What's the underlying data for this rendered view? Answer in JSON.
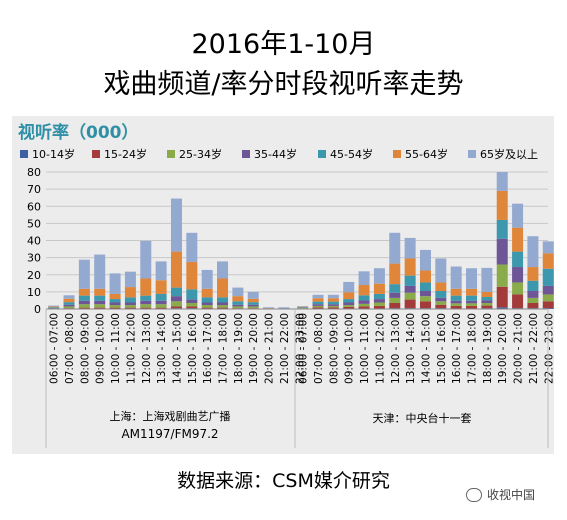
{
  "header": {
    "title_line1": "2016年1-10月",
    "title_line2": "戏曲频道/率分时段视听率走势"
  },
  "footer": {
    "source": "数据来源：CSM媒介研究",
    "watermark": "收视中国",
    "watermark_icon": "wechat-icon"
  },
  "chart_data": {
    "type": "bar",
    "stacked": true,
    "title": "视听率（000）",
    "ylim": [
      0,
      80
    ],
    "yticks": [
      0,
      10,
      20,
      30,
      40,
      50,
      60,
      70,
      80
    ],
    "grid": true,
    "legend_position": "top",
    "categories": [
      "06:00 - 07:00",
      "07:00 - 08:00",
      "08:00 - 09:00",
      "09:00 - 10:00",
      "10:00 - 11:00",
      "11:00 - 12:00",
      "12:00 - 13:00",
      "13:00 - 14:00",
      "14:00 - 15:00",
      "15:00 - 16:00",
      "16:00 - 17:00",
      "17:00 - 18:00",
      "18:00 - 19:00",
      "19:00 - 20:00",
      "20:00 - 21:00",
      "21:00 - 22:00",
      "22:00 - 23:00"
    ],
    "groups": [
      {
        "label_line1": "上海：上海戏剧曲艺广播",
        "label_line2": "AM1197/FM97.2",
        "series": [
          {
            "name": "10-14岁",
            "color": "#3b5fa0",
            "values": [
              0,
              0.2,
              0.3,
              0.3,
              0.3,
              0.3,
              0.3,
              0.3,
              0.5,
              0.5,
              0.3,
              0.3,
              0.2,
              0.2,
              0,
              0,
              0
            ]
          },
          {
            "name": "15-24岁",
            "color": "#a33b3b",
            "values": [
              0,
              0.3,
              0.5,
              0.5,
              0.5,
              0.5,
              0.5,
              0.5,
              1,
              1,
              0.5,
              0.5,
              0.3,
              0.3,
              0,
              0,
              0
            ]
          },
          {
            "name": "25-34岁",
            "color": "#8aab4a",
            "values": [
              0.2,
              1,
              2,
              2,
              1.5,
              1.5,
              2,
              2,
              3,
              2,
              1.5,
              1.5,
              1,
              1,
              0,
              0,
              0
            ]
          },
          {
            "name": "35-44岁",
            "color": "#6e5596",
            "values": [
              0.3,
              1,
              2,
              2,
              1.5,
              1.5,
              2,
              2,
              3,
              2,
              1.5,
              1.5,
              1,
              1,
              0,
              0,
              0
            ]
          },
          {
            "name": "45-54岁",
            "color": "#3d97ad",
            "values": [
              0.5,
              1.5,
              3,
              3,
              2,
              3,
              3,
              4,
              5,
              6,
              3,
              3,
              2,
              1.5,
              0.2,
              0,
              0
            ]
          },
          {
            "name": "55-64岁",
            "color": "#e0863a",
            "values": [
              0.5,
              2,
              4,
              4,
              3,
              6,
              10,
              8,
              21,
              16,
              5,
              11,
              3,
              2,
              0.3,
              0,
              0
            ]
          },
          {
            "name": "65岁及以上",
            "color": "#93a9d0",
            "values": [
              0.5,
              2,
              17,
              20,
              12,
              9,
              22,
              11,
              31,
              17,
              11,
              10,
              5,
              4,
              0.5,
              1,
              0
            ]
          }
        ]
      },
      {
        "label_line1": "天津：中央台十一套",
        "label_line2": "",
        "series": [
          {
            "name": "10-14岁",
            "color": "#3b5fa0",
            "values": [
              0.1,
              0.2,
              0.2,
              0.3,
              0.3,
              0.3,
              0.5,
              0.5,
              0.5,
              0.5,
              0.3,
              0.3,
              0.5,
              1,
              0.5,
              0.5,
              0.5
            ]
          },
          {
            "name": "15-24岁",
            "color": "#a33b3b",
            "values": [
              0.3,
              0.8,
              0.8,
              1,
              1.2,
              1.5,
              3,
              5,
              4,
              2,
              1.5,
              1.5,
              1.5,
              12,
              8,
              3,
              4
            ]
          },
          {
            "name": "25-34岁",
            "color": "#8aab4a",
            "values": [
              0.3,
              0.8,
              0.8,
              1,
              1.5,
              2,
              3,
              4,
              3,
              2,
              1.5,
              1.5,
              1.5,
              13,
              7,
              3,
              4
            ]
          },
          {
            "name": "35-44岁",
            "color": "#6e5596",
            "values": [
              0.3,
              1,
              1,
              1.5,
              2,
              2,
              3,
              4,
              3,
              2,
              1.5,
              1.5,
              1.5,
              15,
              9,
              4,
              5
            ]
          },
          {
            "name": "45-54岁",
            "color": "#3d97ad",
            "values": [
              0.3,
              1.5,
              1.5,
              2,
              3,
              3,
              5,
              6,
              5,
              4,
              3,
              3,
              2,
              11,
              9,
              6,
              10
            ]
          },
          {
            "name": "55-64岁",
            "color": "#e0863a",
            "values": [
              0.2,
              2,
              2,
              4,
              6,
              6,
              12,
              10,
              7,
              5,
              4,
              4,
              3,
              17,
              14,
              8,
              9
            ]
          },
          {
            "name": "65岁及以上",
            "color": "#93a9d0",
            "values": [
              0.2,
              2,
              2,
              6,
              8,
              9,
              18,
              12,
              12,
              14,
              13,
              12,
              14,
              11,
              14,
              18,
              7
            ]
          }
        ]
      }
    ]
  }
}
